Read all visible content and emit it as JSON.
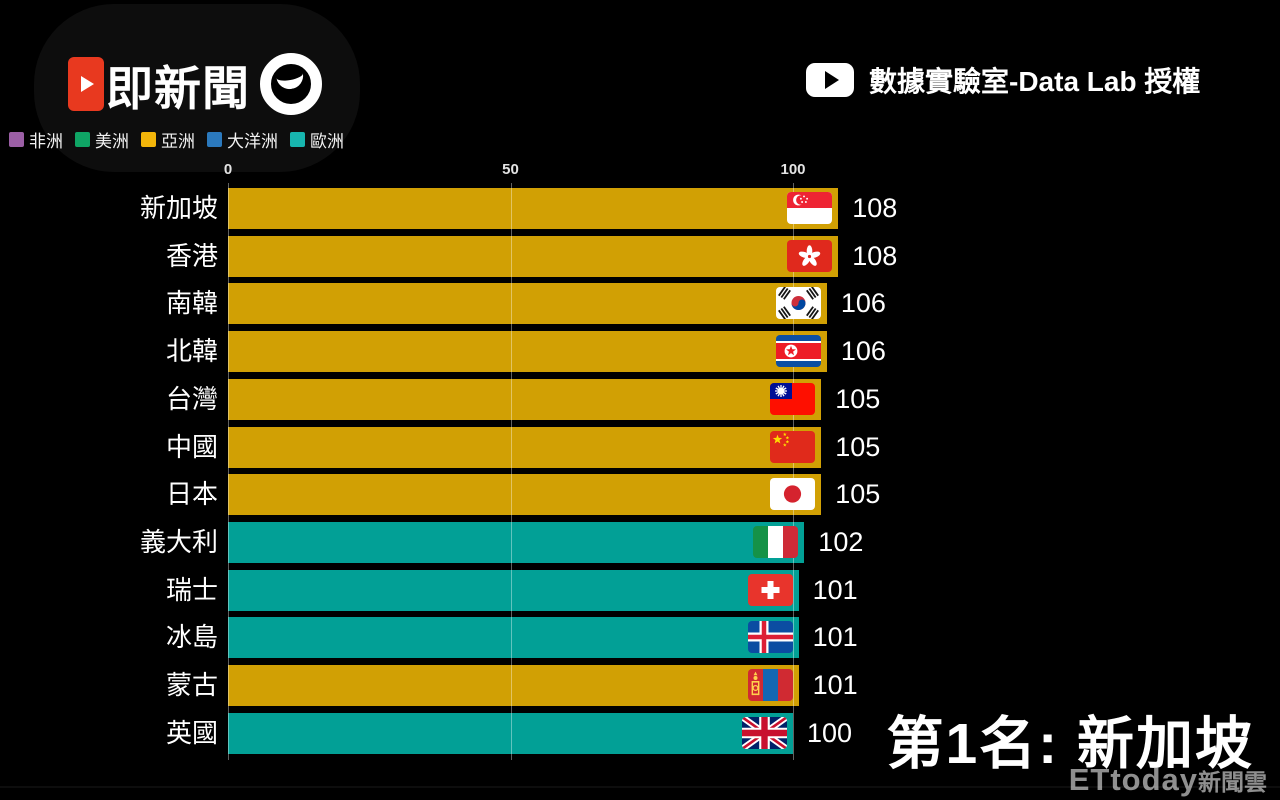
{
  "branding": {
    "logo_text": "即新聞"
  },
  "attribution": {
    "text": "數據實驗室-Data Lab 授權"
  },
  "legend": {
    "items": [
      {
        "label": "非洲",
        "color": "#9b5fa5"
      },
      {
        "label": "美洲",
        "color": "#0fa565"
      },
      {
        "label": "亞洲",
        "color": "#f2b50a"
      },
      {
        "label": "大洋洲",
        "color": "#2b79bd"
      },
      {
        "label": "歐洲",
        "color": "#17b5ae"
      }
    ]
  },
  "chart_data": {
    "type": "bar",
    "orientation": "horizontal",
    "title": "",
    "x_ticks": [
      0,
      50,
      100
    ],
    "xlim": [
      0,
      113
    ],
    "grid": "vertical-ticks-only",
    "legend_position": "top-left",
    "categories": [
      "新加坡",
      "香港",
      "南韓",
      "北韓",
      "台灣",
      "中國",
      "日本",
      "義大利",
      "瑞士",
      "冰島",
      "蒙古",
      "英國"
    ],
    "values": [
      108,
      108,
      106,
      106,
      105,
      105,
      105,
      102,
      101,
      101,
      101,
      100
    ],
    "rows": [
      {
        "label": "新加坡",
        "value": 108,
        "continent": "亞洲",
        "flag": "sg"
      },
      {
        "label": "香港",
        "value": 108,
        "continent": "亞洲",
        "flag": "hk"
      },
      {
        "label": "南韓",
        "value": 106,
        "continent": "亞洲",
        "flag": "kr"
      },
      {
        "label": "北韓",
        "value": 106,
        "continent": "亞洲",
        "flag": "kp"
      },
      {
        "label": "台灣",
        "value": 105,
        "continent": "亞洲",
        "flag": "tw"
      },
      {
        "label": "中國",
        "value": 105,
        "continent": "亞洲",
        "flag": "cn"
      },
      {
        "label": "日本",
        "value": 105,
        "continent": "亞洲",
        "flag": "jp"
      },
      {
        "label": "義大利",
        "value": 102,
        "continent": "歐洲",
        "flag": "it"
      },
      {
        "label": "瑞士",
        "value": 101,
        "continent": "歐洲",
        "flag": "ch"
      },
      {
        "label": "冰島",
        "value": 101,
        "continent": "歐洲",
        "flag": "is"
      },
      {
        "label": "蒙古",
        "value": 101,
        "continent": "亞洲",
        "flag": "mn"
      },
      {
        "label": "英國",
        "value": 100,
        "continent": "歐洲",
        "flag": "gb"
      }
    ],
    "continent_bar_colors": {
      "亞洲": "#d1a004",
      "歐洲": "#02a096"
    }
  },
  "rank_banner": {
    "text": "第1名: 新加坡"
  },
  "watermark": {
    "latin": "ETtoday",
    "cjk": "新聞雲"
  }
}
